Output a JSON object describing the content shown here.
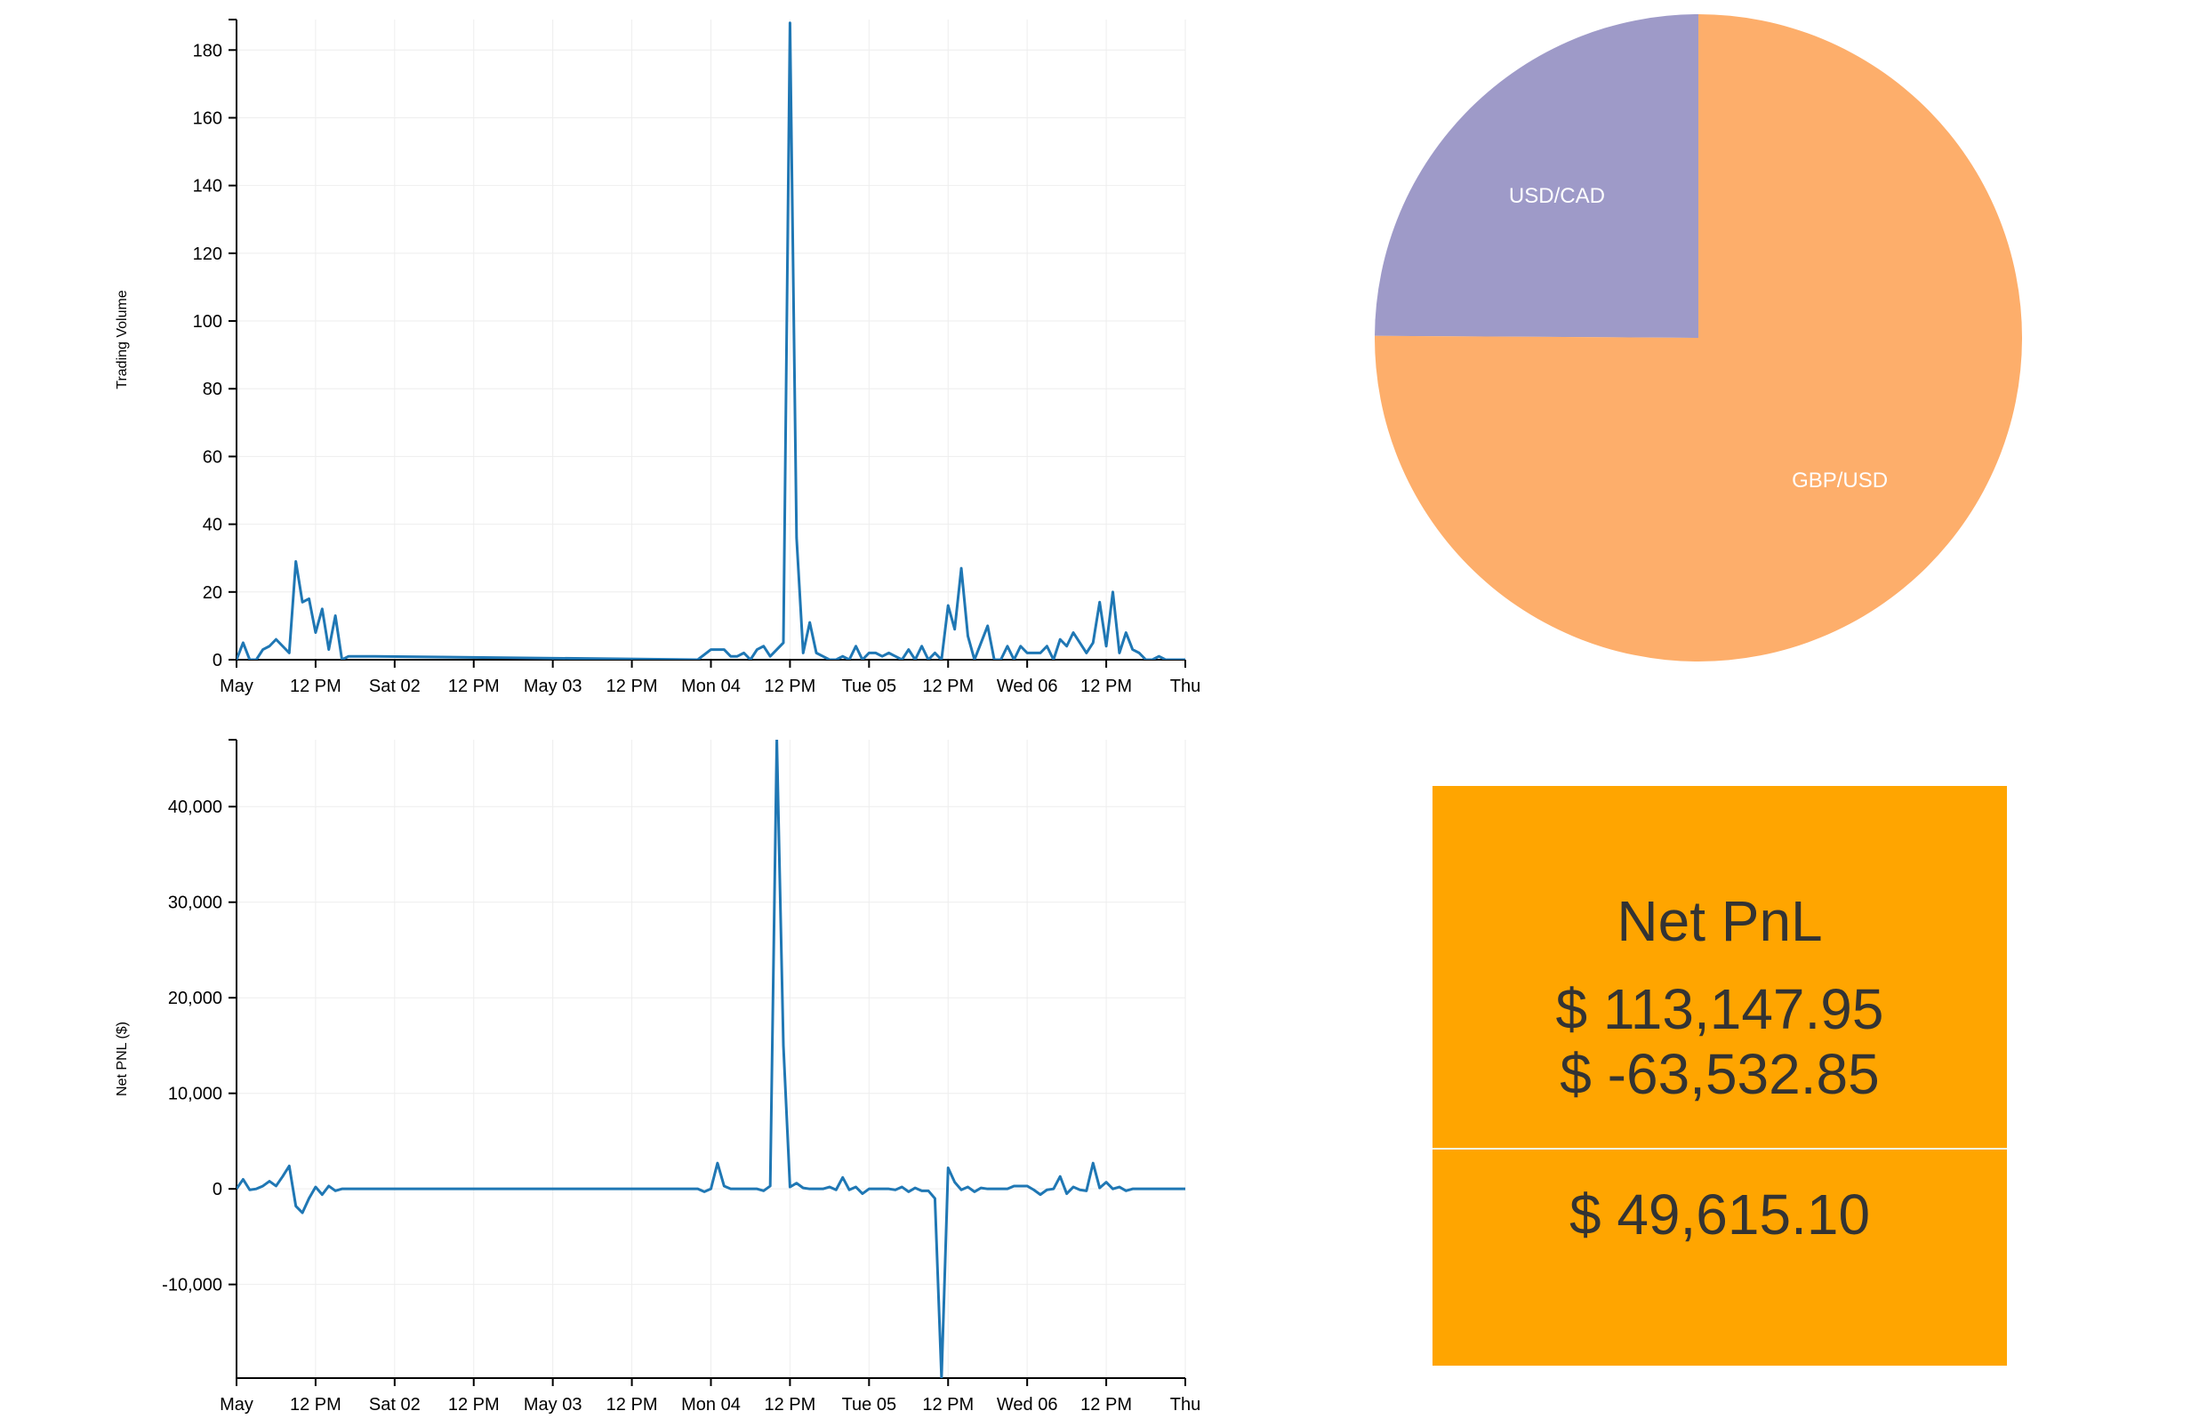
{
  "chart_data": [
    {
      "type": "line",
      "ylabel": "Trading Volume",
      "x_ticks": [
        "May",
        "12 PM",
        "Sat 02",
        "12 PM",
        "May 03",
        "12 PM",
        "Mon 04",
        "12 PM",
        "Tue 05",
        "12 PM",
        "Wed 06",
        "12 PM",
        "Thu"
      ],
      "y_ticks": [
        0,
        20,
        40,
        60,
        80,
        100,
        120,
        140,
        160,
        180
      ],
      "x_range": [
        "2015-05-01 00:00",
        "2015-05-07 00:00"
      ],
      "ylim": [
        0,
        189
      ],
      "grid": true,
      "color": "#1f77b4",
      "series": [
        {
          "x": [
            "05-01 00:00",
            "05-01 01:00",
            "05-01 02:00",
            "05-01 03:00",
            "05-01 04:00",
            "05-01 05:00",
            "05-01 06:00",
            "05-01 07:00",
            "05-01 08:00",
            "05-01 09:00",
            "05-01 10:00",
            "05-01 11:00",
            "05-01 12:00",
            "05-01 13:00",
            "05-01 14:00",
            "05-01 15:00",
            "05-01 16:00",
            "05-01 17:00",
            "05-01 18:00",
            "05-01 19:00",
            "05-01 20:00",
            "05-01 21:00",
            "05-03 22:00",
            "05-04 00:00",
            "05-04 01:00",
            "05-04 02:00",
            "05-04 03:00",
            "05-04 04:00",
            "05-04 05:00",
            "05-04 06:00",
            "05-04 07:00",
            "05-04 08:00",
            "05-04 09:00",
            "05-04 10:00",
            "05-04 11:00",
            "05-04 12:00",
            "05-04 13:00",
            "05-04 14:00",
            "05-04 15:00",
            "05-04 16:00",
            "05-04 17:00",
            "05-04 18:00",
            "05-04 19:00",
            "05-04 20:00",
            "05-04 21:00",
            "05-04 22:00",
            "05-04 23:00",
            "05-05 00:00",
            "05-05 01:00",
            "05-05 02:00",
            "05-05 03:00",
            "05-05 04:00",
            "05-05 05:00",
            "05-05 06:00",
            "05-05 07:00",
            "05-05 08:00",
            "05-05 09:00",
            "05-05 10:00",
            "05-05 11:00",
            "05-05 12:00",
            "05-05 13:00",
            "05-05 14:00",
            "05-05 15:00",
            "05-05 16:00",
            "05-05 17:00",
            "05-05 18:00",
            "05-05 19:00",
            "05-05 20:00",
            "05-05 21:00",
            "05-05 22:00",
            "05-05 23:00",
            "05-06 00:00",
            "05-06 01:00",
            "05-06 02:00",
            "05-06 03:00",
            "05-06 04:00",
            "05-06 05:00",
            "05-06 06:00",
            "05-06 07:00",
            "05-06 08:00",
            "05-06 09:00",
            "05-06 10:00",
            "05-06 11:00",
            "05-06 12:00",
            "05-06 13:00",
            "05-06 14:00",
            "05-06 15:00",
            "05-06 16:00",
            "05-06 17:00",
            "05-06 18:00",
            "05-06 19:00",
            "05-06 20:00",
            "05-06 21:00",
            "05-06 22:00",
            "05-06 23:00",
            "05-07 00:00"
          ],
          "y": [
            0,
            5,
            0,
            0,
            3,
            4,
            6,
            4,
            2,
            29,
            17,
            18,
            8,
            15,
            3,
            13,
            0,
            1,
            1,
            1,
            1,
            1,
            0,
            3,
            3,
            3,
            1,
            1,
            2,
            0,
            3,
            4,
            1,
            3,
            5,
            188,
            36,
            2,
            11,
            2,
            1,
            0,
            0,
            1,
            0,
            4,
            0,
            2,
            2,
            1,
            2,
            1,
            0,
            3,
            0,
            4,
            0,
            2,
            0,
            16,
            9,
            27,
            7,
            0,
            5,
            10,
            0,
            0,
            4,
            0,
            4,
            2,
            2,
            2,
            4,
            0,
            6,
            4,
            8,
            5,
            2,
            5,
            17,
            4,
            20,
            2,
            8,
            3,
            2,
            0,
            0,
            1,
            0,
            0,
            0,
            0
          ]
        }
      ]
    },
    {
      "type": "line",
      "ylabel": "Net PNL ($)",
      "x_ticks": [
        "May",
        "12 PM",
        "Sat 02",
        "12 PM",
        "May 03",
        "12 PM",
        "Mon 04",
        "12 PM",
        "Tue 05",
        "12 PM",
        "Wed 06",
        "12 PM",
        "Thu"
      ],
      "y_ticks": [
        "-10,000",
        "0",
        "10,000",
        "20,000",
        "30,000",
        "40,000"
      ],
      "x_range": [
        "2015-05-01 00:00",
        "2015-05-07 00:00"
      ],
      "ylim": [
        -19800,
        47000
      ],
      "grid": true,
      "color": "#1f77b4",
      "series": [
        {
          "x": [
            "05-01 00:00",
            "05-01 01:00",
            "05-01 02:00",
            "05-01 03:00",
            "05-01 04:00",
            "05-01 05:00",
            "05-01 06:00",
            "05-01 07:00",
            "05-01 08:00",
            "05-01 09:00",
            "05-01 10:00",
            "05-01 11:00",
            "05-01 12:00",
            "05-01 13:00",
            "05-01 14:00",
            "05-01 15:00",
            "05-01 16:00",
            "05-03 22:00",
            "05-03 23:00",
            "05-04 00:00",
            "05-04 01:00",
            "05-04 02:00",
            "05-04 03:00",
            "05-04 04:00",
            "05-04 05:00",
            "05-04 06:00",
            "05-04 07:00",
            "05-04 08:00",
            "05-04 09:00",
            "05-04 10:00",
            "05-04 11:00",
            "05-04 12:00",
            "05-04 13:00",
            "05-04 14:00",
            "05-04 15:00",
            "05-04 16:00",
            "05-04 17:00",
            "05-04 18:00",
            "05-04 19:00",
            "05-04 20:00",
            "05-04 21:00",
            "05-04 22:00",
            "05-04 23:00",
            "05-05 00:00",
            "05-05 01:00",
            "05-05 02:00",
            "05-05 03:00",
            "05-05 04:00",
            "05-05 05:00",
            "05-05 06:00",
            "05-05 07:00",
            "05-05 08:00",
            "05-05 09:00",
            "05-05 10:00",
            "05-05 11:00",
            "05-05 12:00",
            "05-05 13:00",
            "05-05 14:00",
            "05-05 15:00",
            "05-05 16:00",
            "05-05 17:00",
            "05-05 18:00",
            "05-05 19:00",
            "05-05 20:00",
            "05-05 21:00",
            "05-05 22:00",
            "05-05 23:00",
            "05-06 00:00",
            "05-06 01:00",
            "05-06 02:00",
            "05-06 03:00",
            "05-06 04:00",
            "05-06 05:00",
            "05-06 06:00",
            "05-06 07:00",
            "05-06 08:00",
            "05-06 09:00",
            "05-06 10:00",
            "05-06 11:00",
            "05-06 12:00",
            "05-06 13:00",
            "05-06 14:00",
            "05-06 15:00",
            "05-06 16:00",
            "05-06 17:00",
            "05-06 18:00",
            "05-06 19:00",
            "05-06 20:00",
            "05-06 21:00",
            "05-06 22:00",
            "05-06 23:00",
            "05-07 00:00"
          ],
          "y": [
            0,
            1000,
            -100,
            0,
            300,
            800,
            300,
            1300,
            2400,
            -1800,
            -2500,
            -1000,
            200,
            -600,
            300,
            -200,
            0,
            0,
            -300,
            0,
            2700,
            300,
            0,
            0,
            0,
            0,
            0,
            -200,
            300,
            47000,
            15000,
            200,
            600,
            100,
            0,
            0,
            0,
            200,
            -100,
            1200,
            -100,
            200,
            -500,
            0,
            0,
            0,
            0,
            -100,
            200,
            -300,
            100,
            -200,
            -200,
            -1000,
            -19800,
            2200,
            700,
            -100,
            200,
            -300,
            100,
            0,
            0,
            0,
            0,
            300,
            300,
            300,
            -100,
            -600,
            -100,
            0,
            1300,
            -500,
            200,
            -100,
            -200,
            2700,
            100,
            700,
            0,
            200,
            -200,
            0,
            0,
            0,
            0,
            0,
            0,
            0,
            0,
            0
          ]
        }
      ]
    },
    {
      "type": "pie",
      "slices": [
        {
          "label": "USD/CAD",
          "value": 24.9,
          "color": "#9e9ac8"
        },
        {
          "label": "GBP/USD",
          "value": 75.1,
          "color": "#fdae6b"
        }
      ]
    }
  ],
  "pnl_card": {
    "title": "Net PnL",
    "gain": "$ 113,147.95",
    "loss": "$ -63,532.85",
    "net": "$ 49,615.10",
    "color": "#ffa500"
  }
}
